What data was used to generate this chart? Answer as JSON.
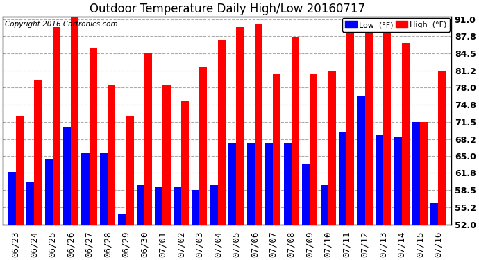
{
  "title": "Outdoor Temperature Daily High/Low 20160717",
  "copyright": "Copyright 2016 Cartronics.com",
  "legend_low": "Low  (°F)",
  "legend_high": "High  (°F)",
  "dates": [
    "06/23",
    "06/24",
    "06/25",
    "06/26",
    "06/27",
    "06/28",
    "06/29",
    "06/30",
    "07/01",
    "07/02",
    "07/03",
    "07/04",
    "07/05",
    "07/06",
    "07/07",
    "07/08",
    "07/09",
    "07/10",
    "07/11",
    "07/12",
    "07/13",
    "07/14",
    "07/15",
    "07/16"
  ],
  "high": [
    72.5,
    79.5,
    89.5,
    92.0,
    85.5,
    78.5,
    72.5,
    84.5,
    78.5,
    75.5,
    82.0,
    87.0,
    89.5,
    90.0,
    80.5,
    87.5,
    80.5,
    81.0,
    91.0,
    91.0,
    91.0,
    86.5,
    71.5,
    81.0
  ],
  "low": [
    62.0,
    60.0,
    64.5,
    70.5,
    65.5,
    65.5,
    54.0,
    59.5,
    59.0,
    59.0,
    58.5,
    59.5,
    67.5,
    67.5,
    67.5,
    67.5,
    63.5,
    59.5,
    69.5,
    76.5,
    69.0,
    68.5,
    71.5,
    56.0
  ],
  "ymin": 52.0,
  "ymax": 91.0,
  "yticks": [
    52.0,
    55.2,
    58.5,
    61.8,
    65.0,
    68.2,
    71.5,
    74.8,
    78.0,
    81.2,
    84.5,
    87.8,
    91.0
  ],
  "bar_color_high": "#ff0000",
  "bar_color_low": "#0000ff",
  "bg_color": "#ffffff",
  "plot_bg_color": "#ffffff",
  "grid_color": "#aaaaaa",
  "title_fontsize": 12,
  "copyright_fontsize": 7.5,
  "tick_fontsize": 9,
  "ytick_fontsize": 9,
  "legend_fontsize": 8,
  "bar_width": 0.42
}
